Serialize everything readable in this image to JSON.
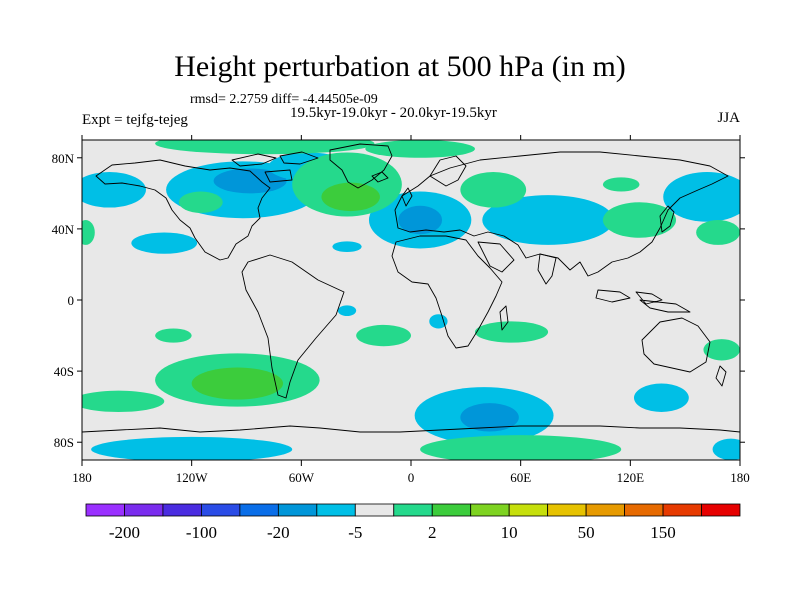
{
  "header": {
    "title": "Height perturbation at 500 hPa (in m)",
    "stats": "rmsd= 2.2759 diff= -4.44505e-09",
    "periods": "19.5kyr-19.0kyr - 20.0kyr-19.5kyr",
    "experiment": "Expt = tejfg-tejeg",
    "season": "JJA"
  },
  "map": {
    "lon_range": [
      -180,
      180
    ],
    "lat_range": [
      -90,
      90
    ],
    "x_ticks": [
      "180",
      "120W",
      "60W",
      "0",
      "60E",
      "120E",
      "180"
    ],
    "y_ticks": [
      "80N",
      "40N",
      "0",
      "40S",
      "80S"
    ],
    "background_color": "#e8e8e8",
    "coastline_color": "#000000",
    "anomaly_regions": [
      {
        "level": "-5",
        "color": "#00bfe6",
        "lon": -165,
        "lat": 62,
        "rx": 20,
        "ry": 10
      },
      {
        "level": "-5",
        "color": "#00bfe6",
        "lon": -135,
        "lat": 32,
        "rx": 18,
        "ry": 6
      },
      {
        "level": "-5",
        "color": "#00bfe6",
        "lon": -92,
        "lat": 62,
        "rx": 42,
        "ry": 16
      },
      {
        "level": "-20",
        "color": "#0096d9",
        "lon": -88,
        "lat": 67,
        "rx": 20,
        "ry": 7
      },
      {
        "level": "-5",
        "color": "#00bfe6",
        "lon": -56,
        "lat": 75,
        "rx": 22,
        "ry": 8
      },
      {
        "level": "-5",
        "color": "#00bfe6",
        "lon": 5,
        "lat": 45,
        "rx": 28,
        "ry": 16
      },
      {
        "level": "-20",
        "color": "#0096d9",
        "lon": 5,
        "lat": 45,
        "rx": 12,
        "ry": 8
      },
      {
        "level": "-5",
        "color": "#00bfe6",
        "lon": 75,
        "lat": 45,
        "rx": 36,
        "ry": 14
      },
      {
        "level": "-5",
        "color": "#00bfe6",
        "lon": 162,
        "lat": 58,
        "rx": 24,
        "ry": 14
      },
      {
        "level": "-5",
        "color": "#00bfe6",
        "lon": -35,
        "lat": 30,
        "rx": 8,
        "ry": 3
      },
      {
        "level": "-5",
        "color": "#00bfe6",
        "lon": -35,
        "lat": -6,
        "rx": 5,
        "ry": 3
      },
      {
        "level": "-5",
        "color": "#00bfe6",
        "lon": 15,
        "lat": -12,
        "rx": 5,
        "ry": 4
      },
      {
        "level": "-5",
        "color": "#00bfe6",
        "lon": 40,
        "lat": -65,
        "rx": 38,
        "ry": 16
      },
      {
        "level": "-20",
        "color": "#0096d9",
        "lon": 43,
        "lat": -66,
        "rx": 16,
        "ry": 8
      },
      {
        "level": "-5",
        "color": "#00bfe6",
        "lon": 137,
        "lat": -55,
        "rx": 15,
        "ry": 8
      },
      {
        "level": "-5",
        "color": "#00bfe6",
        "lon": -120,
        "lat": -84,
        "rx": 55,
        "ry": 7
      },
      {
        "level": "-5",
        "color": "#00bfe6",
        "lon": 175,
        "lat": -84,
        "rx": 10,
        "ry": 6
      },
      {
        "level": "2",
        "color": "#25d98c",
        "lon": -115,
        "lat": 55,
        "rx": 12,
        "ry": 6
      },
      {
        "level": "2",
        "color": "#25d98c",
        "lon": -80,
        "lat": 88,
        "rx": 60,
        "ry": 6
      },
      {
        "level": "2",
        "color": "#25d98c",
        "lon": -35,
        "lat": 65,
        "rx": 30,
        "ry": 18
      },
      {
        "level": "10",
        "color": "#3ccc3c",
        "lon": -33,
        "lat": 58,
        "rx": 16,
        "ry": 8
      },
      {
        "level": "2",
        "color": "#25d98c",
        "lon": 45,
        "lat": 62,
        "rx": 18,
        "ry": 10
      },
      {
        "level": "2",
        "color": "#25d98c",
        "lon": 5,
        "lat": 85,
        "rx": 30,
        "ry": 5
      },
      {
        "level": "2",
        "color": "#25d98c",
        "lon": 125,
        "lat": 45,
        "rx": 20,
        "ry": 10
      },
      {
        "level": "2",
        "color": "#25d98c",
        "lon": 168,
        "lat": 38,
        "rx": 12,
        "ry": 7
      },
      {
        "level": "2",
        "color": "#25d98c",
        "lon": -178,
        "lat": 38,
        "rx": 5,
        "ry": 7
      },
      {
        "level": "2",
        "color": "#25d98c",
        "lon": 115,
        "lat": 65,
        "rx": 10,
        "ry": 4
      },
      {
        "level": "2",
        "color": "#25d98c",
        "lon": -130,
        "lat": -20,
        "rx": 10,
        "ry": 4
      },
      {
        "level": "2",
        "color": "#25d98c",
        "lon": -15,
        "lat": -20,
        "rx": 15,
        "ry": 6
      },
      {
        "level": "2",
        "color": "#25d98c",
        "lon": 55,
        "lat": -18,
        "rx": 20,
        "ry": 6
      },
      {
        "level": "2",
        "color": "#25d98c",
        "lon": 170,
        "lat": -28,
        "rx": 10,
        "ry": 6
      },
      {
        "level": "2",
        "color": "#25d98c",
        "lon": -95,
        "lat": -45,
        "rx": 45,
        "ry": 15
      },
      {
        "level": "10",
        "color": "#3ccc3c",
        "lon": -95,
        "lat": -47,
        "rx": 25,
        "ry": 9
      },
      {
        "level": "2",
        "color": "#25d98c",
        "lon": -160,
        "lat": -57,
        "rx": 25,
        "ry": 6
      },
      {
        "level": "2",
        "color": "#25d98c",
        "lon": 60,
        "lat": -84,
        "rx": 55,
        "ry": 8
      }
    ]
  },
  "colorbar": {
    "colors": [
      "#9a30ff",
      "#7a2cee",
      "#4a2ce0",
      "#2a4ce6",
      "#0a6ee8",
      "#0096d9",
      "#00bfe6",
      "#e8e8e8",
      "#25d98c",
      "#3ccc3c",
      "#7ed321",
      "#c6df0c",
      "#e6c200",
      "#e69a00",
      "#e66a00",
      "#e63a00",
      "#e60000"
    ],
    "labels": [
      "-200",
      "-100",
      "-20",
      "-5",
      "2",
      "10",
      "50",
      "150"
    ]
  }
}
